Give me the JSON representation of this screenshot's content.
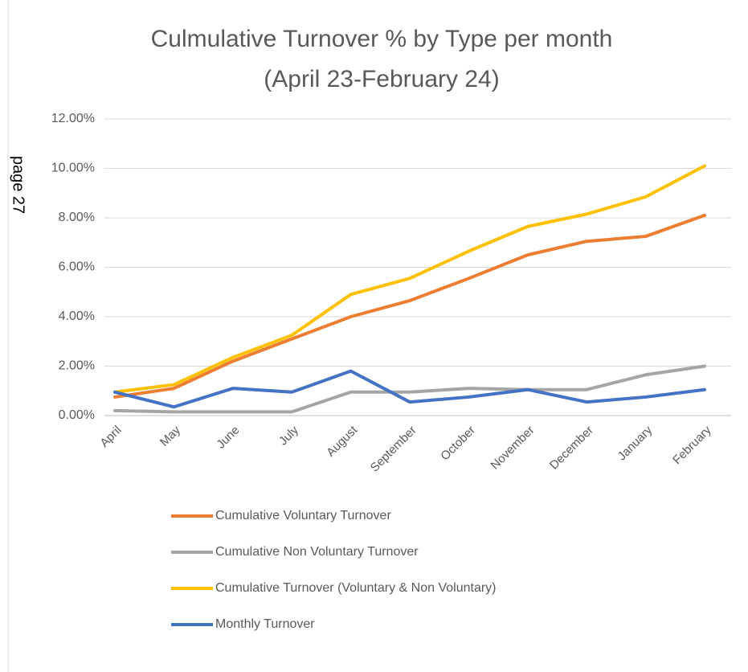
{
  "margin_note": "page 27",
  "chart_data": {
    "type": "line",
    "title": "Culmulative Turnover % by Type per month",
    "subtitle": "(April 23-February 24)",
    "categories": [
      "April",
      "May",
      "June",
      "July",
      "August",
      "September",
      "October",
      "November",
      "December",
      "January",
      "February"
    ],
    "series": [
      {
        "name": "Cumulative Voluntary Turnover",
        "color": "#ED7D31",
        "values": [
          0.75,
          1.1,
          2.2,
          3.1,
          4.0,
          4.65,
          5.55,
          6.5,
          7.05,
          7.25,
          8.1
        ]
      },
      {
        "name": "Cumulative Non Voluntary Turnover",
        "color": "#A5A5A5",
        "values": [
          0.2,
          0.15,
          0.15,
          0.15,
          0.95,
          0.95,
          1.1,
          1.05,
          1.05,
          1.65,
          2.0
        ]
      },
      {
        "name": "Cumulative Turnover (Voluntary & Non Voluntary)",
        "color": "#FFC000",
        "values": [
          0.95,
          1.25,
          2.35,
          3.25,
          4.9,
          5.55,
          6.65,
          7.65,
          8.15,
          8.85,
          10.1
        ]
      },
      {
        "name": "Monthly Turnover",
        "color": "#4472C4",
        "values": [
          0.95,
          0.35,
          1.1,
          0.95,
          1.8,
          0.55,
          0.75,
          1.05,
          0.55,
          0.75,
          1.05
        ]
      }
    ],
    "ylim": [
      0,
      12
    ],
    "yticks": [
      {
        "value": 0,
        "label": "0.00%"
      },
      {
        "value": 2,
        "label": "2.00%"
      },
      {
        "value": 4,
        "label": "4.00%"
      },
      {
        "value": 6,
        "label": "6.00%"
      },
      {
        "value": 8,
        "label": "8.00%"
      },
      {
        "value": 10,
        "label": "10.00%"
      },
      {
        "value": 12,
        "label": "12.00%"
      }
    ],
    "grid": true,
    "legend": "bottom"
  }
}
